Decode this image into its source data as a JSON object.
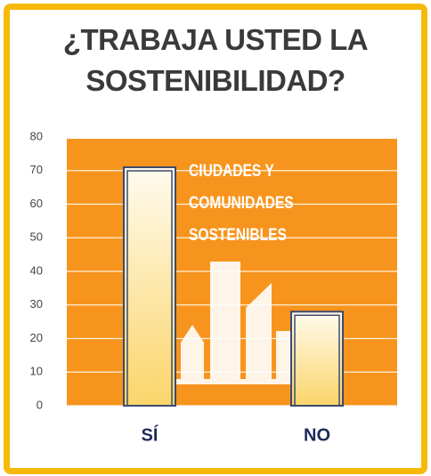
{
  "chart_data": {
    "type": "bar",
    "title": "¿TRABAJA USTED LA SOSTENIBILIDAD?",
    "categories": [
      "SÍ",
      "NO"
    ],
    "values": [
      71,
      28
    ],
    "ylim": [
      0,
      80
    ],
    "yticks": [
      0,
      10,
      20,
      30,
      40,
      50,
      60,
      70,
      80
    ],
    "grid": true,
    "background_text": [
      "CIUDADES Y",
      "COMUNIDADES",
      "SOSTENIBLES"
    ]
  }
}
